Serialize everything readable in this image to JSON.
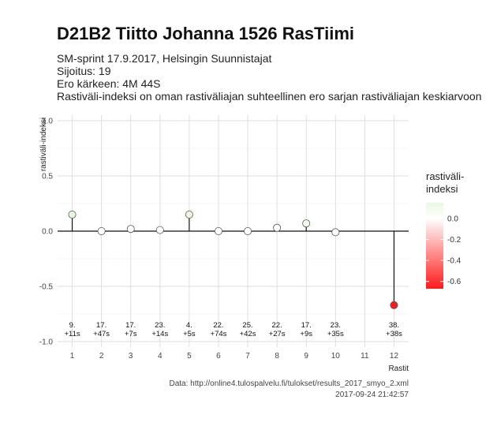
{
  "header": {
    "title": "D21B2 Tiitto Johanna 1526 RasTiimi",
    "line1": "SM-sprint 17.9.2017, Helsingin Suunnistajat",
    "line2": "Sijoitus: 19",
    "line3": "Ero kärkeen: 4M 44S",
    "line4": "Rastiväli-indeksi on oman rastiväliajan suhteellinen ero sarjan rastiväliajan keskiarvoon"
  },
  "caption": {
    "source": "Data: http://online4.tulospalvelu.fi/tulokset/results_2017_smyo_2.xml",
    "timestamp": "2017-09-24 21:42:57"
  },
  "colors": {
    "fill_high": "#e8f8e0",
    "fill_mid": "#ffffff",
    "fill_low": "#ff1a1a",
    "stem": "#111111",
    "grid": "#dcdcdc"
  },
  "chart_data": {
    "type": "lollipop",
    "xlabel": "Rastit",
    "ylabel": "rastiväli-indeksi",
    "xlim": [
      0.5,
      12.5
    ],
    "ylim": [
      -1.05,
      1.05
    ],
    "x_ticks": [
      "1",
      "2",
      "3",
      "4",
      "5",
      "6",
      "7",
      "8",
      "9",
      "10",
      "11",
      "12"
    ],
    "y_ticks": [
      -1.0,
      -0.5,
      0.0,
      0.5,
      1.0
    ],
    "y_tick_labels": [
      "-1.0",
      "-0.5",
      "0.0",
      "0.5",
      "1.0"
    ],
    "grid": true,
    "points": [
      {
        "x": 1,
        "y": 0.15,
        "rank": "9.",
        "diff": "+11s"
      },
      {
        "x": 2,
        "y": 0.0,
        "rank": "17.",
        "diff": "+47s"
      },
      {
        "x": 3,
        "y": 0.02,
        "rank": "17.",
        "diff": "+7s"
      },
      {
        "x": 4,
        "y": 0.01,
        "rank": "23.",
        "diff": "+14s"
      },
      {
        "x": 5,
        "y": 0.15,
        "rank": "4.",
        "diff": "+5s"
      },
      {
        "x": 6,
        "y": 0.0,
        "rank": "22.",
        "diff": "+74s"
      },
      {
        "x": 7,
        "y": 0.0,
        "rank": "25.",
        "diff": "+42s"
      },
      {
        "x": 8,
        "y": 0.03,
        "rank": "22.",
        "diff": "+27s"
      },
      {
        "x": 9,
        "y": 0.07,
        "rank": "17.",
        "diff": "+9s"
      },
      {
        "x": 10,
        "y": -0.01,
        "rank": "23.",
        "diff": "+35s"
      },
      {
        "x": 12,
        "y": -0.67,
        "rank": "38.",
        "diff": "+38s"
      }
    ],
    "annotation_y": -0.9,
    "legend": {
      "title": "rastiväli-\nindeksi",
      "placement": "right",
      "range": [
        -0.67,
        0.15
      ],
      "ticks": [
        0.0,
        -0.2,
        -0.4,
        -0.6
      ],
      "tick_labels": [
        "0.0",
        "-0.2",
        "-0.4",
        "-0.6"
      ]
    }
  }
}
